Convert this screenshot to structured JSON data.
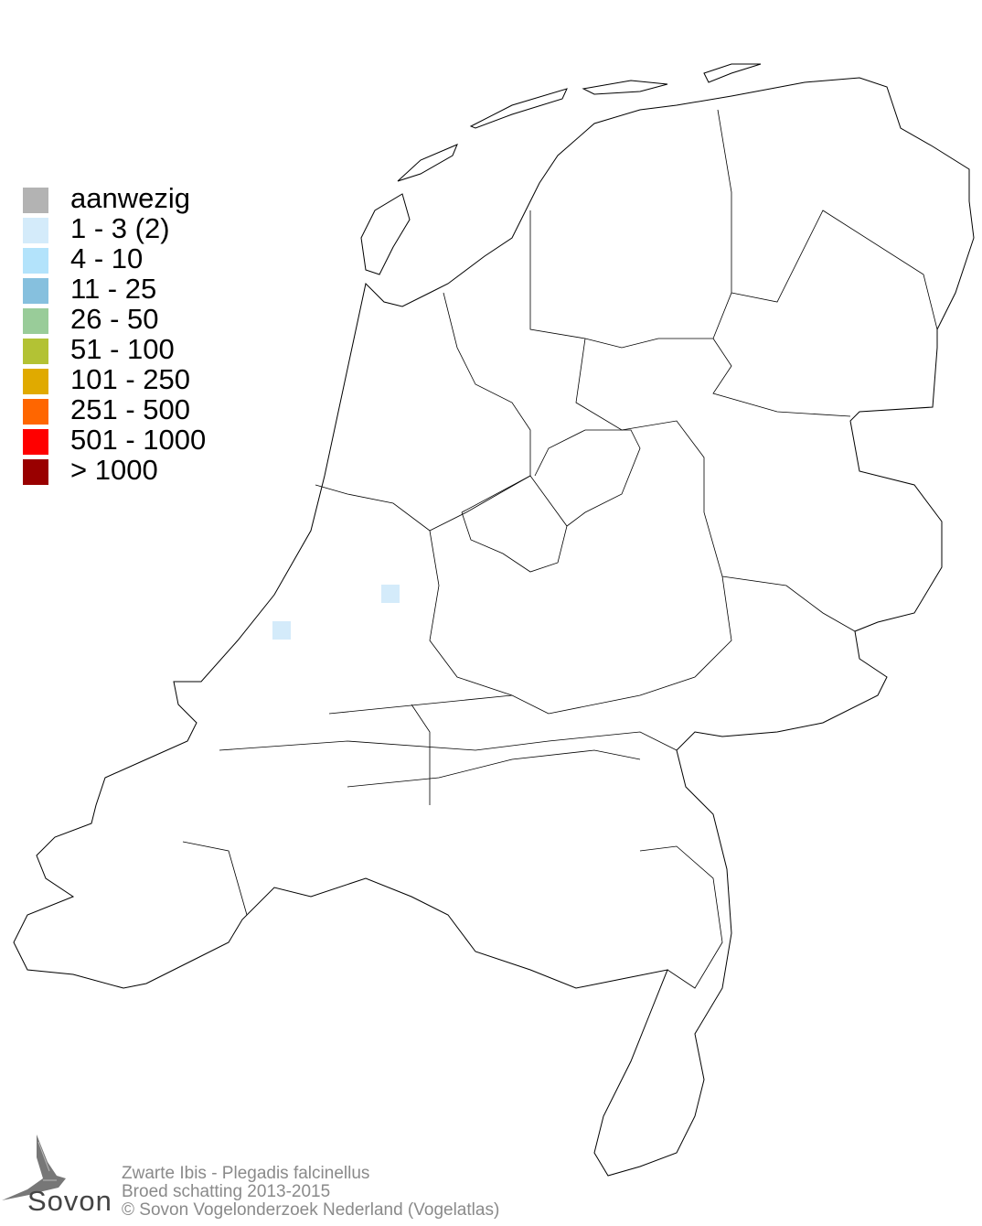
{
  "legend": {
    "items": [
      {
        "label": "aanwezig",
        "color": "#b3b3b3"
      },
      {
        "label": "1 - 3 (2)",
        "color": "#d4ebfa"
      },
      {
        "label": "4 - 10",
        "color": "#b3e3fb"
      },
      {
        "label": "11 - 25",
        "color": "#86c0de"
      },
      {
        "label": "26 - 50",
        "color": "#99cc99"
      },
      {
        "label": "51 - 100",
        "color": "#b3c234"
      },
      {
        "label": "101 - 250",
        "color": "#e0aa00"
      },
      {
        "label": "251 - 500",
        "color": "#ff6600"
      },
      {
        "label": "501 - 1000",
        "color": "#ff0000"
      },
      {
        "label": "> 1000",
        "color": "#990000"
      }
    ]
  },
  "map": {
    "occupied_cells": [
      {
        "category": "1 - 3 (2)",
        "color": "#d4ebfa"
      },
      {
        "category": "1 - 3 (2)",
        "color": "#d4ebfa"
      }
    ]
  },
  "footer": {
    "species": "Zwarte Ibis - Plegadis falcinellus",
    "subtitle": "Broed schatting 2013-2015",
    "copyright": "© Sovon Vogelonderzoek Nederland (Vogelatlas)"
  },
  "logo": {
    "text": "Sovon"
  }
}
